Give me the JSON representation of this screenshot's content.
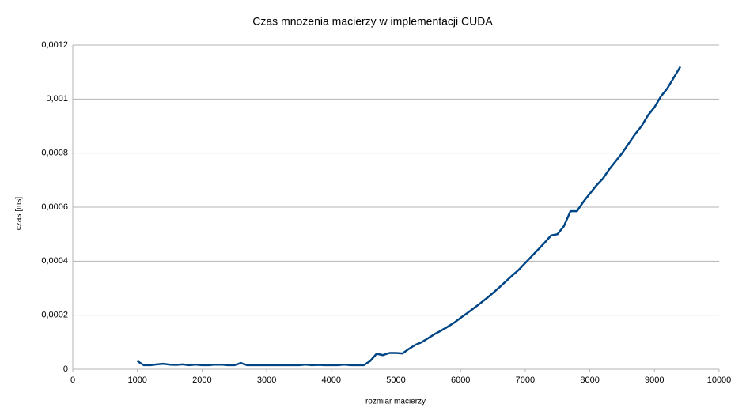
{
  "chart_data": {
    "type": "line",
    "title": "Czas mnożenia macierzy w implementacji CUDA",
    "xlabel": "rozmiar macierzy",
    "ylabel": "czas [ms]",
    "xlim": [
      0,
      10000
    ],
    "xticks": [
      0,
      1000,
      2000,
      3000,
      4000,
      5000,
      6000,
      7000,
      8000,
      9000,
      10000
    ],
    "ylim": [
      0,
      0.0012
    ],
    "yticks": [
      0,
      {
        "value": 0.0002,
        "label": "0,0002"
      },
      {
        "value": 0.0004,
        "label": "0,0004"
      },
      {
        "value": 0.0006,
        "label": "0,0006"
      },
      {
        "value": 0.0008,
        "label": "0,0008"
      },
      {
        "value": 0.001,
        "label": "0,001"
      },
      {
        "value": 0.0012,
        "label": "0,0012"
      }
    ],
    "grid": true,
    "series": [
      {
        "color": "#004586",
        "x": [
          1000,
          1100,
          1200,
          1300,
          1400,
          1500,
          1600,
          1700,
          1800,
          1900,
          2000,
          2100,
          2200,
          2300,
          2400,
          2500,
          2600,
          2700,
          2800,
          2900,
          3000,
          3100,
          3200,
          3300,
          3400,
          3500,
          3600,
          3700,
          3800,
          3900,
          4000,
          4100,
          4200,
          4300,
          4400,
          4500,
          4600,
          4700,
          4800,
          4900,
          5000,
          5100,
          5200,
          5300,
          5400,
          5500,
          5600,
          5700,
          5800,
          5900,
          6000,
          6100,
          6200,
          6300,
          6400,
          6500,
          6600,
          6700,
          6800,
          6900,
          7000,
          7100,
          7200,
          7300,
          7400,
          7500,
          7600,
          7700,
          7800,
          7900,
          8000,
          8100,
          8200,
          8300,
          8400,
          8500,
          8600,
          8700,
          8800,
          8900,
          9000,
          9100,
          9200,
          9300,
          9400
        ],
        "values": [
          3e-05,
          1.5e-05,
          1.5e-05,
          1.8e-05,
          2e-05,
          1.7e-05,
          1.6e-05,
          1.8e-05,
          1.5e-05,
          1.7e-05,
          1.5e-05,
          1.5e-05,
          1.7e-05,
          1.7e-05,
          1.5e-05,
          1.5e-05,
          2.3e-05,
          1.5e-05,
          1.5e-05,
          1.5e-05,
          1.5e-05,
          1.5e-05,
          1.5e-05,
          1.5e-05,
          1.5e-05,
          1.5e-05,
          1.7e-05,
          1.5e-05,
          1.6e-05,
          1.5e-05,
          1.5e-05,
          1.5e-05,
          1.7e-05,
          1.5e-05,
          1.5e-05,
          1.5e-05,
          3e-05,
          5.7e-05,
          5.2e-05,
          6e-05,
          6e-05,
          5.8e-05,
          7.5e-05,
          9e-05,
          0.0001,
          0.000115,
          0.00013,
          0.000143,
          0.000157,
          0.000172,
          0.00019,
          0.000207,
          0.000225,
          0.000243,
          0.000262,
          0.000282,
          0.000303,
          0.000325,
          0.000347,
          0.000368,
          0.000393,
          0.000418,
          0.000443,
          0.000468,
          0.000495,
          0.0005,
          0.00053,
          0.000585,
          0.000585,
          0.00062,
          0.00065,
          0.00068,
          0.000705,
          0.00074,
          0.00077,
          0.0008,
          0.000835,
          0.00087,
          0.0009,
          0.00094,
          0.00097,
          0.00101,
          0.00104,
          0.00108,
          0.00112
        ]
      }
    ]
  }
}
